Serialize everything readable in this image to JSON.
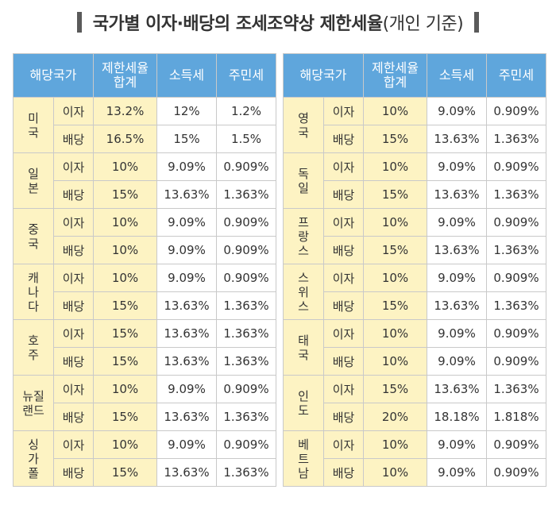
{
  "title": {
    "main": "국가별 이자·배당의 조세조약상 제한세율",
    "sub": "(개인 기준)"
  },
  "headers": {
    "country": "해당국가",
    "total_line1": "제한세율",
    "total_line2": "합계",
    "income_tax": "소득세",
    "resident_tax": "주민세"
  },
  "kinds": {
    "interest": "이자",
    "dividend": "배당"
  },
  "left_table": [
    {
      "country": [
        "미",
        "국"
      ],
      "interest": {
        "total": "13.2%",
        "income": "12%",
        "resident": "1.2%"
      },
      "dividend": {
        "total": "16.5%",
        "income": "15%",
        "resident": "1.5%"
      }
    },
    {
      "country": [
        "일",
        "본"
      ],
      "interest": {
        "total": "10%",
        "income": "9.09%",
        "resident": "0.909%"
      },
      "dividend": {
        "total": "15%",
        "income": "13.63%",
        "resident": "1.363%"
      }
    },
    {
      "country": [
        "중",
        "국"
      ],
      "interest": {
        "total": "10%",
        "income": "9.09%",
        "resident": "0.909%"
      },
      "dividend": {
        "total": "10%",
        "income": "9.09%",
        "resident": "0.909%"
      }
    },
    {
      "country": [
        "캐",
        "나",
        "다"
      ],
      "interest": {
        "total": "10%",
        "income": "9.09%",
        "resident": "0.909%"
      },
      "dividend": {
        "total": "15%",
        "income": "13.63%",
        "resident": "1.363%"
      }
    },
    {
      "country": [
        "호",
        "주"
      ],
      "interest": {
        "total": "15%",
        "income": "13.63%",
        "resident": "1.363%"
      },
      "dividend": {
        "total": "15%",
        "income": "13.63%",
        "resident": "1.363%"
      }
    },
    {
      "country": [
        "뉴질",
        "랜드"
      ],
      "interest": {
        "total": "10%",
        "income": "9.09%",
        "resident": "0.909%"
      },
      "dividend": {
        "total": "15%",
        "income": "13.63%",
        "resident": "1.363%"
      }
    },
    {
      "country": [
        "싱",
        "가",
        "폴"
      ],
      "interest": {
        "total": "10%",
        "income": "9.09%",
        "resident": "0.909%"
      },
      "dividend": {
        "total": "15%",
        "income": "13.63%",
        "resident": "1.363%"
      }
    }
  ],
  "right_table": [
    {
      "country": [
        "영",
        "국"
      ],
      "interest": {
        "total": "10%",
        "income": "9.09%",
        "resident": "0.909%"
      },
      "dividend": {
        "total": "15%",
        "income": "13.63%",
        "resident": "1.363%"
      }
    },
    {
      "country": [
        "독",
        "일"
      ],
      "interest": {
        "total": "10%",
        "income": "9.09%",
        "resident": "0.909%"
      },
      "dividend": {
        "total": "15%",
        "income": "13.63%",
        "resident": "1.363%"
      }
    },
    {
      "country": [
        "프",
        "랑",
        "스"
      ],
      "interest": {
        "total": "10%",
        "income": "9.09%",
        "resident": "0.909%"
      },
      "dividend": {
        "total": "15%",
        "income": "13.63%",
        "resident": "1.363%"
      }
    },
    {
      "country": [
        "스",
        "위",
        "스"
      ],
      "interest": {
        "total": "10%",
        "income": "9.09%",
        "resident": "0.909%"
      },
      "dividend": {
        "total": "15%",
        "income": "13.63%",
        "resident": "1.363%"
      }
    },
    {
      "country": [
        "태",
        "국"
      ],
      "interest": {
        "total": "10%",
        "income": "9.09%",
        "resident": "0.909%"
      },
      "dividend": {
        "total": "10%",
        "income": "9.09%",
        "resident": "0.909%"
      }
    },
    {
      "country": [
        "인",
        "도"
      ],
      "interest": {
        "total": "15%",
        "income": "13.63%",
        "resident": "1.363%"
      },
      "dividend": {
        "total": "20%",
        "income": "18.18%",
        "resident": "1.818%"
      }
    },
    {
      "country": [
        "베",
        "트",
        "남"
      ],
      "interest": {
        "total": "10%",
        "income": "9.09%",
        "resident": "0.909%"
      },
      "dividend": {
        "total": "10%",
        "income": "9.09%",
        "resident": "0.909%"
      }
    }
  ]
}
